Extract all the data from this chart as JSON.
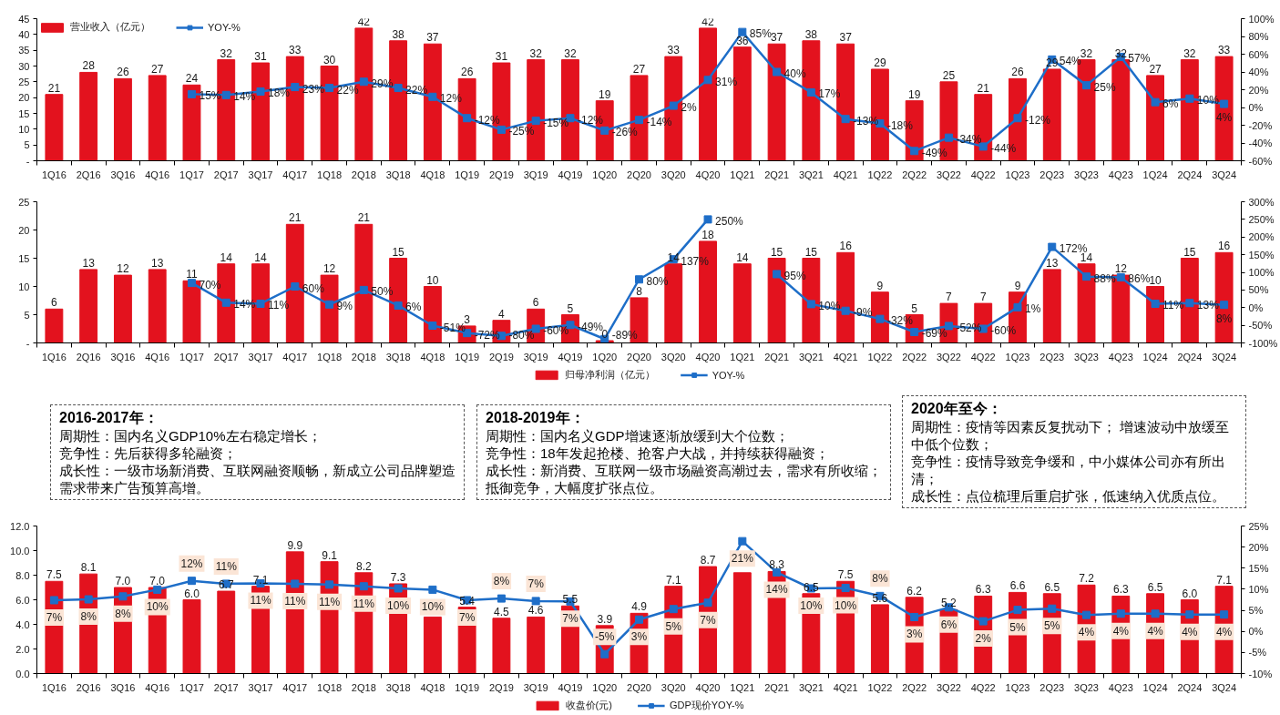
{
  "chart_data": [
    {
      "type": "bar",
      "categories": [
        "1Q16",
        "2Q16",
        "3Q16",
        "4Q16",
        "1Q17",
        "2Q17",
        "3Q17",
        "4Q17",
        "1Q18",
        "2Q18",
        "3Q18",
        "4Q18",
        "1Q19",
        "2Q19",
        "3Q19",
        "4Q19",
        "1Q20",
        "2Q20",
        "3Q20",
        "4Q20",
        "1Q21",
        "2Q21",
        "3Q21",
        "4Q21",
        "1Q22",
        "2Q22",
        "3Q22",
        "4Q22",
        "1Q23",
        "2Q23",
        "3Q23",
        "4Q23",
        "1Q24",
        "2Q24",
        "3Q24"
      ],
      "series": [
        {
          "name": "营业收入（亿元）",
          "color": "#e3121e",
          "values": [
            21,
            28,
            26,
            27,
            24,
            32,
            31,
            33,
            30,
            42,
            38,
            37,
            26,
            31,
            32,
            32,
            19,
            27,
            33,
            42,
            36,
            37,
            38,
            37,
            29,
            19,
            25,
            21,
            26,
            29,
            32,
            32,
            27,
            32,
            33
          ],
          "value_labels": [
            "21",
            "28",
            "26",
            "27",
            "24",
            "32",
            "31",
            "33",
            "30",
            "42",
            "38",
            "37",
            "26",
            "31",
            "32",
            "32",
            "19",
            "27",
            "33",
            "42",
            "36",
            "37",
            "38",
            "37",
            "29",
            "19",
            "25",
            "21",
            "26",
            "29",
            "32",
            "32",
            "27",
            "32",
            "33"
          ]
        },
        {
          "name": "YOY-%",
          "type": "line",
          "axis": "y2",
          "color": "#1e6ec8",
          "values": [
            null,
            null,
            null,
            null,
            15,
            14,
            18,
            23,
            22,
            29,
            22,
            12,
            -12,
            -25,
            -15,
            -12,
            -26,
            -14,
            2,
            31,
            85,
            40,
            17,
            -13,
            -18,
            -49,
            -34,
            -44,
            -12,
            54,
            25,
            57,
            6,
            10,
            4
          ],
          "value_labels": [
            null,
            null,
            null,
            null,
            "15%",
            "14%",
            "18%",
            "23%",
            "22%",
            "29%",
            "22%",
            "12%",
            "-12%",
            "-25%",
            "-15%",
            "-12%",
            "-26%",
            "-14%",
            "2%",
            "31%",
            "85%",
            "40%",
            "17%",
            "-13%",
            "-18%",
            "-49%",
            "-34%",
            "-44%",
            "-12%",
            "54%",
            "25%",
            "57%",
            "6%",
            "10%",
            "4%"
          ]
        }
      ],
      "ylim": [
        0,
        45
      ],
      "yticks": [
        {
          "value": 0,
          "label": "-"
        },
        5,
        10,
        15,
        20,
        25,
        30,
        35,
        40,
        45
      ],
      "y2lim": [
        -60,
        100
      ],
      "y2ticks": [
        {
          "value": -60,
          "label": "-60%"
        },
        {
          "value": -40,
          "label": "-40%"
        },
        {
          "value": -20,
          "label": "-20%"
        },
        {
          "value": 0,
          "label": "0%"
        },
        {
          "value": 20,
          "label": "20%"
        },
        {
          "value": 40,
          "label": "40%"
        },
        {
          "value": 60,
          "label": "60%"
        },
        {
          "value": 80,
          "label": "80%"
        },
        {
          "value": 100,
          "label": "100%"
        }
      ],
      "legend": "top left",
      "marker": "square"
    },
    {
      "type": "bar",
      "categories": [
        "1Q16",
        "2Q16",
        "3Q16",
        "4Q16",
        "1Q17",
        "2Q17",
        "3Q17",
        "4Q17",
        "1Q18",
        "2Q18",
        "3Q18",
        "4Q18",
        "1Q19",
        "2Q19",
        "3Q19",
        "4Q19",
        "1Q20",
        "2Q20",
        "3Q20",
        "4Q20",
        "1Q21",
        "2Q21",
        "3Q21",
        "4Q21",
        "1Q22",
        "2Q22",
        "3Q22",
        "4Q22",
        "1Q23",
        "2Q23",
        "3Q23",
        "4Q23",
        "1Q24",
        "2Q24",
        "3Q24"
      ],
      "series": [
        {
          "name": "归母净利润（亿元）",
          "color": "#e3121e",
          "values": [
            6,
            13,
            12,
            13,
            11,
            14,
            14,
            21,
            12,
            21,
            15,
            10,
            3,
            4,
            6,
            5,
            0.4,
            8,
            14,
            18,
            14,
            15,
            15,
            16,
            9,
            5,
            7,
            7,
            9,
            13,
            14,
            12,
            10,
            15,
            16
          ],
          "value_labels": [
            "6",
            "13",
            "12",
            "13",
            "11",
            "14",
            "14",
            "21",
            "12",
            "21",
            "15",
            "10",
            "3",
            "4",
            "6",
            "5",
            "0",
            "8",
            "14",
            "18",
            "14",
            "15",
            "15",
            "16",
            "9",
            "5",
            "7",
            "7",
            "9",
            "13",
            "14",
            "12",
            "10",
            "15",
            "16"
          ]
        },
        {
          "name": "YOY-%",
          "type": "line",
          "axis": "y2",
          "color": "#1e6ec8",
          "values": [
            null,
            null,
            null,
            null,
            70,
            14,
            11,
            60,
            9,
            50,
            6,
            -51,
            -72,
            -80,
            -60,
            -49,
            -89,
            80,
            137,
            250,
            null,
            95,
            10,
            -9,
            -32,
            -69,
            -52,
            -60,
            1,
            172,
            88,
            86,
            11,
            13,
            8
          ],
          "value_labels": [
            null,
            null,
            null,
            null,
            "70%",
            "14%",
            "11%",
            "60%",
            "9%",
            "50%",
            "6%",
            "-51%",
            "-72%",
            "-80%",
            "-60%",
            "-49%",
            "-89%",
            "80%",
            "137%",
            "250%",
            null,
            "95%",
            "10%",
            "-9%",
            "-32%",
            "-69%",
            "-52%",
            "-60%",
            "1%",
            "172%",
            "88%",
            "86%",
            "11%",
            "13%",
            "8%"
          ]
        }
      ],
      "ylim": [
        0,
        25
      ],
      "yticks": [
        {
          "value": 0,
          "label": "-"
        },
        5,
        10,
        15,
        20,
        25
      ],
      "y2lim": [
        -100,
        300
      ],
      "y2ticks": [
        {
          "value": -100,
          "label": "-100%"
        },
        {
          "value": -50,
          "label": "-50%"
        },
        {
          "value": 0,
          "label": "0%"
        },
        {
          "value": 50,
          "label": "50%"
        },
        {
          "value": 100,
          "label": "100%"
        },
        {
          "value": 150,
          "label": "150%"
        },
        {
          "value": 200,
          "label": "200%"
        },
        {
          "value": 250,
          "label": "250%"
        },
        {
          "value": 300,
          "label": "300%"
        }
      ],
      "legend": "bottom",
      "marker": "square"
    },
    {
      "type": "other",
      "title": "2016-2017年：",
      "annotations": [
        "周期性：国内名义GDP10%左右稳定增长；",
        "竞争性：先后获得多轮融资；",
        "成长性：一级市场新消费、互联网融资顺畅，新成立公司品牌塑造需求带来广告预算高增。"
      ]
    },
    {
      "type": "other",
      "title": "2018-2019年：",
      "annotations": [
        "周期性：国内名义GDP增速逐渐放缓到大个位数；",
        "竞争性：18年发起抢楼、抢客户大战，并持续获得融资；",
        "成长性：新消费、互联网一级市场融资高潮过去，需求有所收缩；抵御竞争，大幅度扩张点位。"
      ]
    },
    {
      "type": "other",
      "title": "2020年至今：",
      "annotations": [
        "周期性：疫情等因素反复扰动下； 增速波动中放缓至中低个位数；",
        "竞争性：疫情导致竞争缓和，中小媒体公司亦有所出清；",
        "成长性：点位梳理后重启扩张，低速纳入优质点位。"
      ]
    },
    {
      "type": "bar",
      "categories": [
        "1Q16",
        "2Q16",
        "3Q16",
        "4Q16",
        "1Q17",
        "2Q17",
        "3Q17",
        "4Q17",
        "1Q18",
        "2Q18",
        "3Q18",
        "4Q18",
        "1Q19",
        "2Q19",
        "3Q19",
        "4Q19",
        "1Q20",
        "2Q20",
        "3Q20",
        "4Q20",
        "1Q21",
        "2Q21",
        "3Q21",
        "4Q21",
        "1Q22",
        "2Q22",
        "3Q22",
        "4Q22",
        "1Q23",
        "2Q23",
        "3Q23",
        "4Q23",
        "1Q24",
        "2Q24",
        "3Q24"
      ],
      "series": [
        {
          "name": "收盘价(元)",
          "color": "#e3121e",
          "values": [
            7.5,
            8.1,
            7.0,
            7.0,
            6.0,
            6.7,
            7.1,
            9.9,
            9.1,
            8.2,
            7.3,
            4.6,
            5.4,
            4.5,
            4.6,
            5.5,
            3.9,
            4.9,
            7.1,
            8.7,
            8.2,
            8.3,
            6.5,
            7.5,
            5.6,
            6.2,
            5.2,
            6.3,
            6.6,
            6.5,
            7.2,
            6.3,
            6.5,
            6.0,
            7.1
          ],
          "value_labels": [
            "7.5",
            "8.1",
            "7.0",
            "7.0",
            "6.0",
            "6.7",
            "7.1",
            "9.9",
            "9.1",
            "8.2",
            "7.3",
            null,
            "5.4",
            "4.5",
            "4.6",
            "5.5",
            "3.9",
            "4.9",
            "7.1",
            "8.7",
            null,
            "8.3",
            "6.5",
            "7.5",
            "5.6",
            "6.2",
            "5.2",
            "6.3",
            "6.6",
            "6.5",
            "7.2",
            "6.3",
            "6.5",
            "6.0",
            "7.1"
          ]
        },
        {
          "name": "GDP现价YOY-%",
          "type": "line",
          "axis": "y2",
          "color": "#1e6ec8",
          "values": [
            7.4,
            7.6,
            8.3,
            9.9,
            12.0,
            11.3,
            11.4,
            11.3,
            11.1,
            10.7,
            10.2,
            9.9,
            7.4,
            7.8,
            7.2,
            7.1,
            -5.4,
            2.8,
            5.3,
            6.8,
            21.4,
            14.0,
            10.2,
            10.3,
            8.4,
            3.4,
            5.7,
            2.4,
            5.1,
            5.4,
            3.9,
            4.2,
            4.2,
            4.0,
            4.0
          ],
          "value_labels": [
            "7%",
            "8%",
            "8%",
            "10%",
            "12%",
            "11%",
            "11%",
            "11%",
            "11%",
            "11%",
            "10%",
            "10%",
            "7%",
            "8%",
            "7%",
            "7%",
            "-5%",
            "3%",
            "5%",
            "7%",
            "21%",
            "14%",
            "10%",
            "10%",
            "8%",
            "3%",
            "6%",
            "2%",
            "5%",
            "5%",
            "4%",
            "4%",
            "4%",
            "4%",
            "4%"
          ]
        }
      ],
      "ylim": [
        0,
        12
      ],
      "yticks": [
        {
          "value": 0,
          "label": "0.0"
        },
        {
          "value": 2,
          "label": "2.0"
        },
        {
          "value": 4,
          "label": "4.0"
        },
        {
          "value": 6,
          "label": "6.0"
        },
        {
          "value": 8,
          "label": "8.0"
        },
        {
          "value": 10,
          "label": "10.0"
        },
        {
          "value": 12,
          "label": "12.0"
        }
      ],
      "y2lim": [
        -10,
        25
      ],
      "y2ticks": [
        {
          "value": -10,
          "label": "-10%"
        },
        {
          "value": -5,
          "label": "-5%"
        },
        {
          "value": 0,
          "label": "0%"
        },
        {
          "value": 5,
          "label": "5%"
        },
        {
          "value": 10,
          "label": "10%"
        },
        {
          "value": 15,
          "label": "15%"
        },
        {
          "value": 20,
          "label": "20%"
        },
        {
          "value": 25,
          "label": "25%"
        }
      ],
      "legend": "bottom",
      "marker": "square"
    }
  ]
}
